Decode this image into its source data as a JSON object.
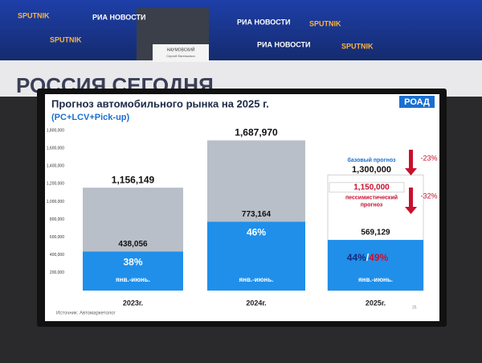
{
  "scene": {
    "banners": [
      "SPUTNIK",
      "РИА НОВОСТИ",
      "SPUTNIK",
      "РИА НОВОСТИ",
      "SPUTNIK",
      "РИА НОВОСТИ",
      "SPUTNIK"
    ],
    "wall_text": "РОССИЯ СЕГОДНЯ",
    "nameplate": [
      "НАУМОВСКИЙ",
      "Сергей Евгеньевич"
    ]
  },
  "chart_data": {
    "type": "bar",
    "title": "Прогноз автомобильного рынка на 2025 г.",
    "subtitle": "(PC+LCV+Pick-up)",
    "logo": "РОАД",
    "categories": [
      "2023г.",
      "2024г.",
      "2025г."
    ],
    "ylim": [
      0,
      1800000
    ],
    "yticks": [
      {
        "value": 200000,
        "label": "200,000"
      },
      {
        "value": 400000,
        "label": "400,000"
      },
      {
        "value": 600000,
        "label": "600,000"
      },
      {
        "value": 800000,
        "label": "800,000"
      },
      {
        "value": 1000000,
        "label": "1,000,000"
      },
      {
        "value": 1200000,
        "label": "1,200,000"
      },
      {
        "value": 1400000,
        "label": "1,400,000"
      },
      {
        "value": 1600000,
        "label": "1,600,000"
      },
      {
        "value": 1800000,
        "label": "1,800,000"
      }
    ],
    "totals": {
      "values": [
        1156149,
        1687970,
        1300000
      ],
      "value_labels": [
        "1,156,149",
        "1,687,970",
        "1,300,000"
      ],
      "colors": [
        "#b8bfc8",
        "#b8bfc8",
        "#ffffff"
      ]
    },
    "h1": {
      "name": "янв.-июнь.",
      "color": "#1f8fea",
      "values": [
        438056,
        773164,
        569129
      ],
      "value_labels": [
        "438,056",
        "773,164",
        "569,129"
      ],
      "shares": [
        {
          "value": 38,
          "label": "38%"
        },
        {
          "value": 46,
          "label": "46%"
        },
        {
          "value": 44,
          "label": "44%"
        }
      ]
    },
    "forecast": {
      "base_label": "базовый прогноз",
      "pessimistic": {
        "value": 1150000,
        "label": "1,150,000"
      },
      "pessimistic_label": [
        "пессимистический",
        "прогноз"
      ],
      "separator": "/",
      "pessimistic_share": {
        "value": 49,
        "label": "49%"
      },
      "changes": [
        {
          "value": -23,
          "label": "-23%"
        },
        {
          "value": -32,
          "label": "-32%"
        }
      ],
      "color": "#c8102e"
    },
    "source": "Источник: Автомаркетолог",
    "page": "25"
  }
}
